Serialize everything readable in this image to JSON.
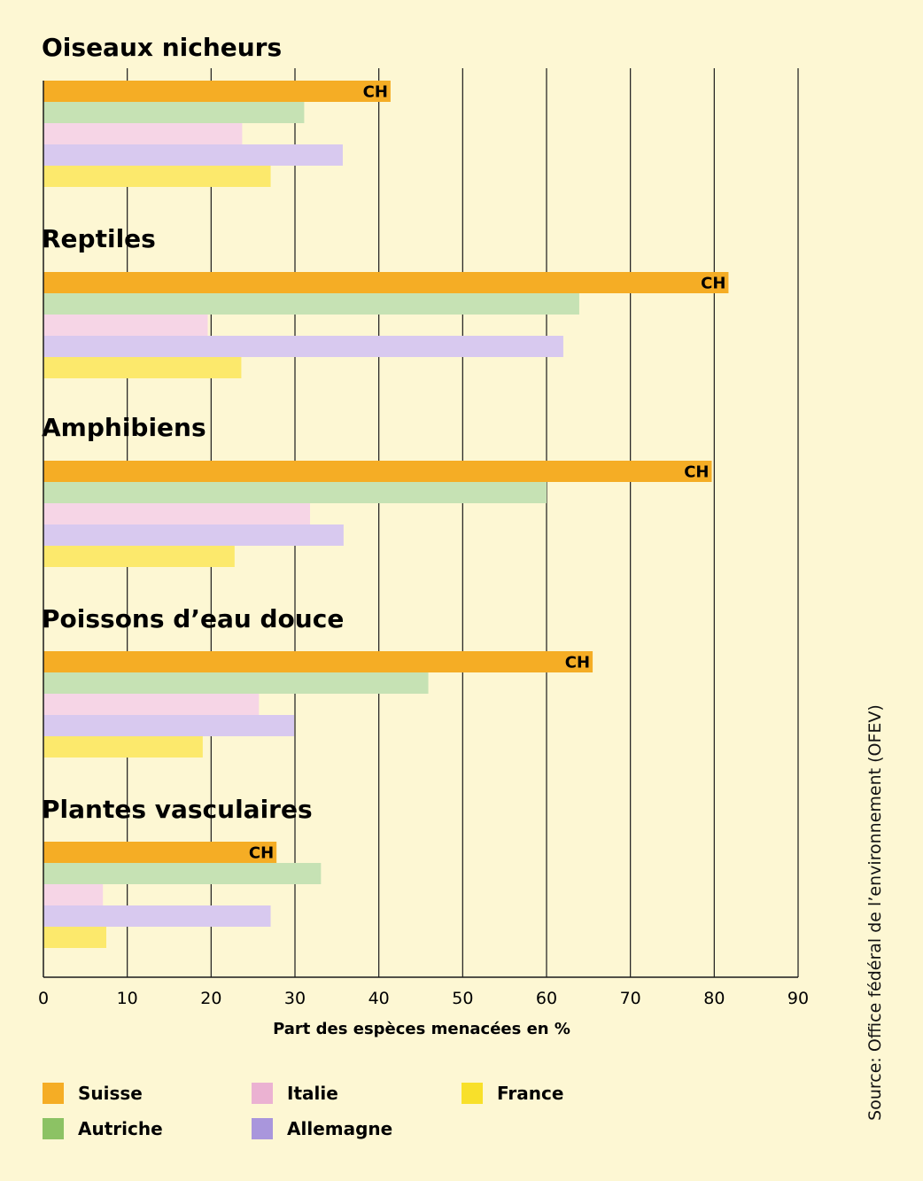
{
  "chart_data": {
    "type": "bar",
    "orientation": "horizontal",
    "xlabel": "Part des espèces menacées en %",
    "xlim": [
      0,
      90
    ],
    "xticks": [
      0,
      10,
      20,
      30,
      40,
      50,
      60,
      70,
      80,
      90
    ],
    "grid": true,
    "legend_placement": "bottom",
    "highlight_label": "CH",
    "series": [
      {
        "name": "Suisse",
        "color": "#f5ad25"
      },
      {
        "name": "Autriche",
        "color": "#c6e2b4"
      },
      {
        "name": "Italie",
        "color": "#f6d5e6"
      },
      {
        "name": "Allemagne",
        "color": "#d8c9ef"
      },
      {
        "name": "France",
        "color": "#fce96c"
      }
    ],
    "legend_colors": [
      "#f5ad25",
      "#8cc264",
      "#ebb2d2",
      "#a996dc",
      "#f8e02a"
    ],
    "groups": [
      {
        "name": "Oiseaux nicheurs",
        "values": [
          41.4,
          31.1,
          23.7,
          35.7,
          27.1
        ]
      },
      {
        "name": "Reptiles",
        "values": [
          81.7,
          63.9,
          19.6,
          62.0,
          23.6
        ]
      },
      {
        "name": "Amphibiens",
        "values": [
          79.7,
          60.0,
          31.8,
          35.8,
          22.8
        ]
      },
      {
        "name": "Poissons d’eau douce",
        "values": [
          65.5,
          45.9,
          25.7,
          29.9,
          19.0
        ]
      },
      {
        "name": "Plantes vasculaires",
        "values": [
          27.8,
          33.1,
          7.1,
          27.1,
          7.5
        ]
      }
    ]
  },
  "legend": {
    "items": [
      "Suisse",
      "Autriche",
      "Italie",
      "Allemagne",
      "France"
    ]
  },
  "source": "Source: Office fédéral de l’environnement (OFEV)"
}
